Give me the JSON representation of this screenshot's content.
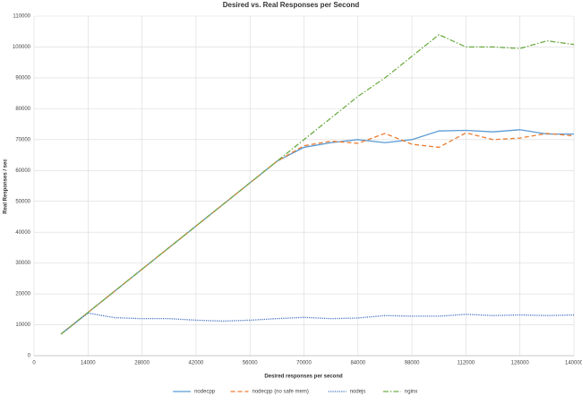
{
  "chart_data": {
    "type": "line",
    "title": "Desired vs. Real Responses per Second",
    "x_label": "Desired responses per second",
    "y_label": "Real Responses / sec",
    "x": [
      7000,
      14000,
      21000,
      28000,
      35000,
      42000,
      49000,
      56000,
      63000,
      70000,
      77000,
      84000,
      91000,
      98000,
      105000,
      112000,
      119000,
      126000,
      133000,
      140000
    ],
    "series": [
      {
        "name": "nodecpp",
        "color": "#5b9bd5",
        "dash": "solid",
        "values": [
          7000,
          14000,
          21000,
          28000,
          35000,
          42000,
          49000,
          56000,
          63000,
          67500,
          69000,
          70000,
          69000,
          70000,
          72800,
          73000,
          72500,
          73200,
          71800,
          71800
        ]
      },
      {
        "name": "nodecpp (no safe mem)",
        "color": "#ed7d31",
        "dash": "dashed",
        "values": [
          7000,
          14000,
          21000,
          28000,
          35000,
          42000,
          49000,
          56000,
          63000,
          68000,
          69500,
          68800,
          72000,
          68500,
          67500,
          72200,
          70000,
          70500,
          72000,
          71200
        ]
      },
      {
        "name": "nodejs",
        "color": "#4472c4",
        "dash": "dotted",
        "values": [
          7000,
          13800,
          12300,
          12000,
          12000,
          11500,
          11200,
          11500,
          12000,
          12400,
          12000,
          12200,
          13000,
          12800,
          12800,
          13400,
          13000,
          13200,
          13000,
          13200
        ]
      },
      {
        "name": "nginx",
        "color": "#70ad47",
        "dash": "dashdot",
        "values": [
          7000,
          14000,
          21000,
          28000,
          35000,
          42000,
          49000,
          56000,
          63000,
          70000,
          77000,
          84000,
          90000,
          97000,
          104000,
          100000,
          100000,
          99500,
          102000,
          100800
        ]
      }
    ],
    "xlim": [
      0,
      140000
    ],
    "xticks": [
      0,
      14000,
      28000,
      42000,
      56000,
      70000,
      84000,
      98000,
      112000,
      126000,
      140000
    ],
    "ylim": [
      0,
      110000
    ],
    "yticks": [
      0,
      10000,
      20000,
      30000,
      40000,
      50000,
      60000,
      70000,
      80000,
      90000,
      100000,
      110000
    ],
    "grid": true,
    "legend": "bottom"
  }
}
